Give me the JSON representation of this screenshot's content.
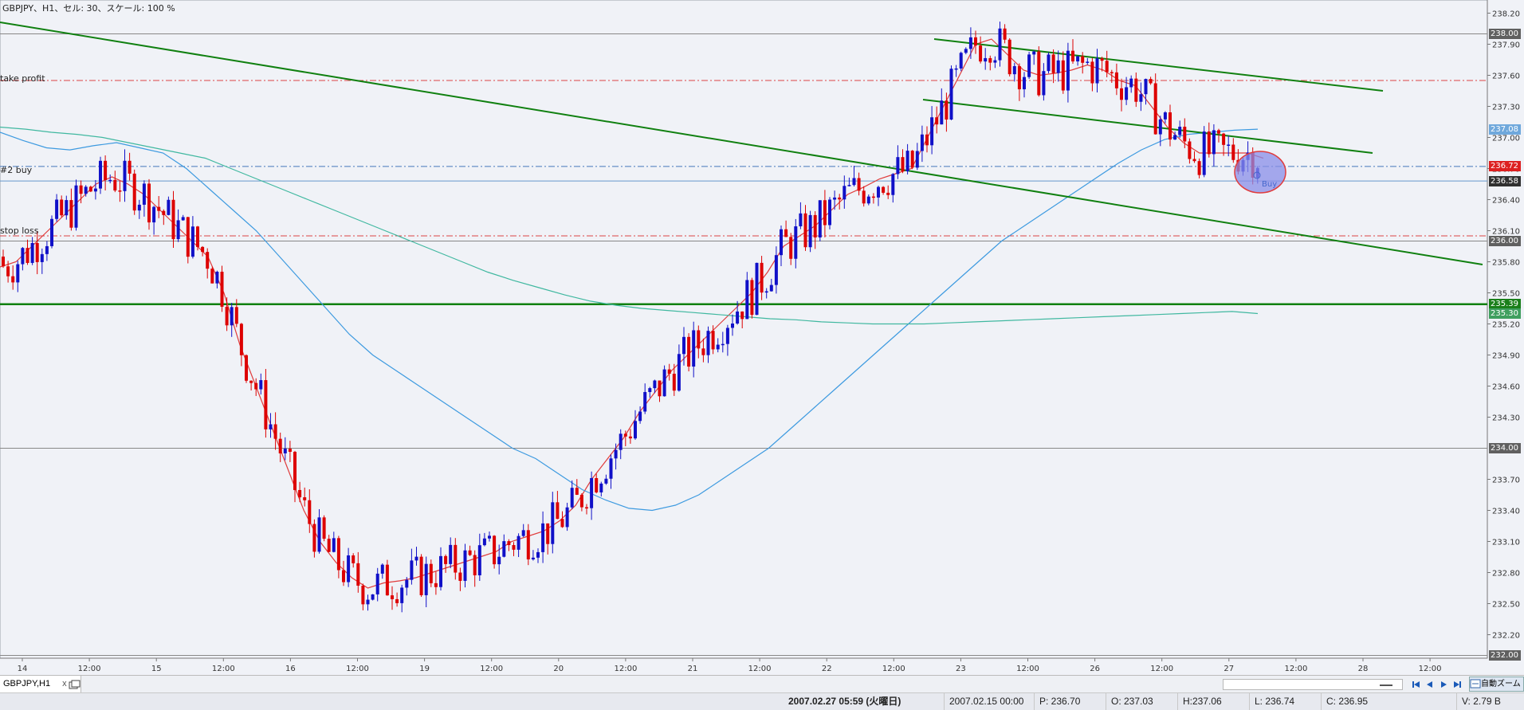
{
  "chart_header": {
    "text": "GBPJPY、H1、セル: 30、スケール: 100 %"
  },
  "levels": {
    "take_profit": "take profit",
    "buy_order": "#2 buy",
    "stop_loss": "stop loss",
    "buy_marker": "Buy"
  },
  "price_tags": [
    {
      "text": "238.00",
      "bg": "#606060",
      "fg": "#ffffff"
    },
    {
      "text": "237.08",
      "bg": "#6fa8dc",
      "fg": "#ffffff"
    },
    {
      "text": "236.72",
      "bg": "#dd2020",
      "fg": "#ffffff"
    },
    {
      "text": "236.58",
      "bg": "#303030",
      "fg": "#ffffff"
    },
    {
      "text": "236.00",
      "bg": "#606060",
      "fg": "#ffffff"
    },
    {
      "text": "235.39",
      "bg": "#1a7f1a",
      "fg": "#ffffff"
    },
    {
      "text": "235.30",
      "bg": "#3f9f5f",
      "fg": "#ffffff"
    },
    {
      "text": "234.00",
      "bg": "#606060",
      "fg": "#ffffff"
    },
    {
      "text": "232.00",
      "bg": "#606060",
      "fg": "#ffffff"
    }
  ],
  "tab_bar": {
    "tab_label": "GBPJPY,H1",
    "close_symbol": "x",
    "auto_scroll_label": "自動ズーム"
  },
  "status_bar": {
    "datetime": "2007.02.27 05:59 (火曜日)",
    "bar_time": "2007.02.15 00:00",
    "p": "P: 236.70",
    "o": "O: 237.03",
    "h": "H:237.06",
    "l": "L: 236.74",
    "c": "C: 236.95",
    "v": "V: 2.79 B"
  },
  "colors": {
    "bull": "#1010c8",
    "bear": "#dd0000",
    "ma_fast": "#e03c3c",
    "ma_mid": "#3d9ae0",
    "ma_slow": "#40b8a0",
    "trend": "#108010"
  },
  "chart_data": {
    "type": "candlestick",
    "symbol": "GBPJPY",
    "timeframe": "H1",
    "y_axis": {
      "ylim": [
        232.05,
        238.25
      ],
      "ticks": [
        "238.20",
        "237.90",
        "237.60",
        "237.30",
        "237.00",
        "236.70",
        "236.40",
        "236.10",
        "235.80",
        "235.50",
        "235.20",
        "234.90",
        "234.60",
        "234.30",
        "233.70",
        "233.40",
        "233.10",
        "232.80",
        "232.50",
        "232.20"
      ]
    },
    "x_axis": {
      "ticks": [
        "14",
        "12:00",
        "15",
        "12:00",
        "16",
        "12:00",
        "19",
        "12:00",
        "20",
        "12:00",
        "21",
        "12:00",
        "22",
        "12:00",
        "23",
        "12:00",
        "26",
        "12:00",
        "27",
        "12:00",
        "28",
        "12:00"
      ]
    },
    "horizontal_lines": [
      {
        "label": "take profit",
        "price": 237.55,
        "style": "dashdot",
        "color": "#dd4444"
      },
      {
        "label": "#2 buy",
        "price": 236.72,
        "style": "dashdot",
        "color": "#4477bb"
      },
      {
        "label": "stop loss",
        "price": 236.05,
        "style": "dashdot",
        "color": "#dd4444"
      },
      {
        "label": "",
        "price": 238.0,
        "style": "solid",
        "color": "#888888"
      },
      {
        "label": "",
        "price": 236.58,
        "style": "solid",
        "color": "#6699cc"
      },
      {
        "label": "",
        "price": 236.0,
        "style": "solid",
        "color": "#888888"
      },
      {
        "label": "",
        "price": 235.39,
        "style": "solid",
        "color": "#108010"
      },
      {
        "label": "",
        "price": 234.0,
        "style": "solid",
        "color": "#888888"
      },
      {
        "label": "",
        "price": 232.0,
        "style": "solid",
        "color": "#888888"
      }
    ],
    "series": [
      {
        "name": "",
        "color": "#e03c3c",
        "values": [
          235.75,
          235.8,
          235.95,
          236.1,
          236.25,
          236.4,
          236.55,
          236.62,
          236.55,
          236.45,
          236.3,
          236.15,
          236.0,
          235.85,
          235.5,
          235.0,
          234.6,
          234.2,
          233.8,
          233.4,
          233.1,
          232.9,
          232.75,
          232.65,
          232.7,
          232.72,
          232.75,
          232.8,
          232.85,
          232.9,
          232.95,
          233.0,
          233.1,
          233.15,
          233.2,
          233.3,
          233.45,
          233.7,
          233.9,
          234.1,
          234.35,
          234.55,
          234.75,
          234.9,
          235.05,
          235.2,
          235.35,
          235.5,
          235.7,
          235.95,
          236.05,
          236.15,
          236.3,
          236.45,
          236.52,
          236.6,
          236.65,
          236.7,
          237.0,
          237.3,
          237.6,
          237.9,
          237.95,
          237.8,
          237.65,
          237.6,
          237.62,
          237.65,
          237.7,
          237.65,
          237.55,
          237.5,
          237.3,
          237.1,
          236.95,
          236.85,
          236.85,
          236.85,
          236.85,
          236.8
        ]
      },
      {
        "name": "",
        "color": "#3d9ae0",
        "values": [
          237.05,
          236.97,
          236.9,
          236.88,
          236.92,
          236.95,
          236.9,
          236.85,
          236.7,
          236.5,
          236.3,
          236.1,
          235.85,
          235.6,
          235.35,
          235.1,
          234.9,
          234.75,
          234.6,
          234.45,
          234.3,
          234.15,
          234.0,
          233.9,
          233.75,
          233.6,
          233.5,
          233.42,
          233.4,
          233.45,
          233.55,
          233.7,
          233.85,
          234.0,
          234.2,
          234.4,
          234.6,
          234.8,
          235.0,
          235.2,
          235.4,
          235.6,
          235.8,
          236.0,
          236.15,
          236.3,
          236.45,
          236.6,
          236.75,
          236.88,
          236.98,
          237.03,
          237.05,
          237.07,
          237.08
        ]
      },
      {
        "name": "",
        "color": "#40b8a0",
        "values": [
          237.1,
          237.08,
          237.05,
          237.03,
          237.0,
          236.95,
          236.9,
          236.85,
          236.8,
          236.7,
          236.6,
          236.5,
          236.4,
          236.3,
          236.2,
          236.1,
          236.0,
          235.9,
          235.8,
          235.7,
          235.62,
          235.55,
          235.48,
          235.42,
          235.38,
          235.35,
          235.33,
          235.31,
          235.29,
          235.27,
          235.25,
          235.24,
          235.22,
          235.21,
          235.2,
          235.2,
          235.2,
          235.21,
          235.22,
          235.23,
          235.24,
          235.25,
          235.26,
          235.27,
          235.28,
          235.29,
          235.3,
          235.31,
          235.32,
          235.3
        ]
      }
    ]
  }
}
